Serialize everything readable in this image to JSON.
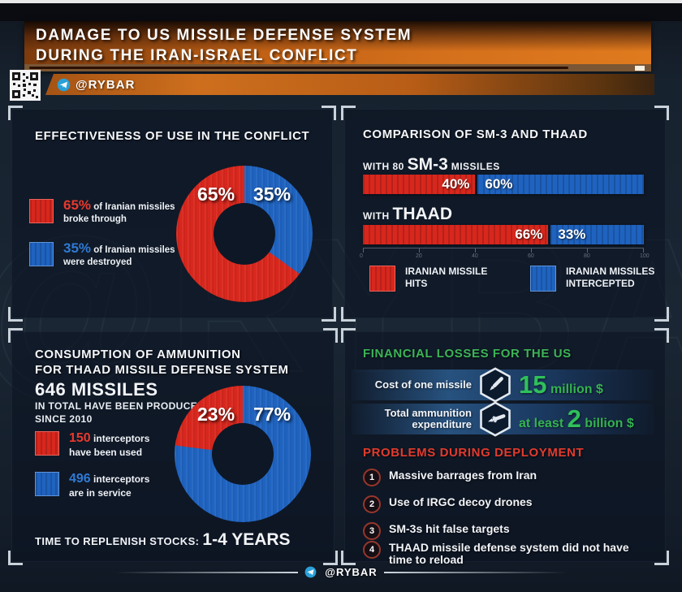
{
  "header": {
    "line1": "DAMAGE TO US MISSILE DEFENSE SYSTEM",
    "line2": "DURING THE IRAN-ISRAEL CONFLICT",
    "channel": "@RYBAR"
  },
  "watermark": "@RYBAR",
  "footer": {
    "channel": "@RYBAR"
  },
  "effectiveness": {
    "title": "EFFECTIVENESS OF USE IN THE CONFLICT",
    "donut_labels": {
      "red": "65%",
      "blue": "35%"
    },
    "legend": [
      {
        "value": "65%",
        "rest": " of Iranian missiles",
        "line2": "broke through"
      },
      {
        "value": "35%",
        "rest": " of Iranian missiles",
        "line2": "were destroyed"
      }
    ]
  },
  "comparison": {
    "title": "COMPARISON OF SM-3 AND THAAD",
    "bar1": {
      "prefix": "WITH 80 ",
      "big": "SM-3",
      "suffix": " MISSILES",
      "red_label": "40%",
      "blue_label": "60%"
    },
    "bar2": {
      "prefix": "WITH ",
      "big": "THAAD",
      "suffix": "",
      "red_label": "66%",
      "blue_label": "33%"
    },
    "axis_ticks": [
      "0",
      "20",
      "40",
      "60",
      "80",
      "100"
    ],
    "legend": [
      {
        "line1": "IRANIAN MISSILE",
        "line2": "HITS"
      },
      {
        "line1": "IRANIAN MISSILES",
        "line2": "INTERCEPTED"
      }
    ]
  },
  "consumption": {
    "title1": "CONSUMPTION OF AMMUNITION",
    "title2": "FOR THAAD MISSILE DEFENSE SYSTEM",
    "big": "646 MISSILES",
    "sub1": "IN TOTAL HAVE BEEN PRODUCED",
    "sub2": "SINCE 2010",
    "donut_labels": {
      "red": "23%",
      "blue": "77%"
    },
    "legend": [
      {
        "value": "150",
        "rest": " interceptors",
        "line2": "have been used"
      },
      {
        "value": "496",
        "rest": " interceptors",
        "line2": "are in service"
      }
    ],
    "replenish_label": "TIME TO REPLENISH STOCKS:",
    "replenish_value": "1-4 YEARS"
  },
  "financial": {
    "title": "FINANCIAL LOSSES FOR THE US",
    "rows": [
      {
        "label_line1": "Cost of one missile",
        "label_line2": "",
        "prefix": "",
        "big": "15",
        "suffix": " million $"
      },
      {
        "label_line1": "Total ammunition",
        "label_line2": "expenditure",
        "prefix": "at least ",
        "big": "2",
        "suffix": " billion $"
      }
    ]
  },
  "problems": {
    "title": "PROBLEMS DURING DEPLOYMENT",
    "items": [
      {
        "num": "1",
        "text": "Massive barrages from Iran"
      },
      {
        "num": "2",
        "text": "Use of IRGC decoy drones"
      },
      {
        "num": "3",
        "text": "SM-3s hit false targets"
      },
      {
        "num": "4",
        "text": "THAAD missile defense system did not have time to reload"
      }
    ]
  },
  "colors": {
    "red": "#d8271d",
    "blue": "#1f63c0",
    "green": "#35b251",
    "orange": "#d4701c",
    "problem_red": "#e23b2e"
  },
  "chart_data": [
    {
      "type": "pie",
      "donut": true,
      "title": "EFFECTIVENESS OF USE IN THE CONFLICT",
      "labels": [
        "65% of Iranian missiles broke through",
        "35% of Iranian missiles were destroyed"
      ],
      "values": [
        65,
        35
      ],
      "colors": [
        "#d8271d",
        "#1f63c0"
      ],
      "segments": [
        {
          "color": "#1f63c0",
          "pct": 35
        },
        {
          "color": "#d8271d",
          "pct": 65
        }
      ]
    },
    {
      "type": "bar",
      "horizontal": true,
      "stacked": true,
      "title": "COMPARISON OF SM-3 AND THAAD",
      "categories": [
        "WITH 80 SM-3 MISSILES",
        "WITH THAAD"
      ],
      "series": [
        {
          "name": "IRANIAN MISSILE HITS",
          "color": "#d8271d",
          "values": [
            40,
            66
          ]
        },
        {
          "name": "IRANIAN MISSILES INTERCEPTED",
          "color": "#1f63c0",
          "values": [
            60,
            33
          ]
        }
      ],
      "xlim": [
        0,
        100
      ],
      "xticks": [
        0,
        20,
        40,
        60,
        80,
        100
      ]
    },
    {
      "type": "pie",
      "donut": true,
      "title": "CONSUMPTION OF AMMUNITION FOR THAAD MISSILE DEFENSE SYSTEM",
      "labels": [
        "150 interceptors have been used (23%)",
        "496 interceptors are in service (77%)"
      ],
      "values": [
        23,
        77
      ],
      "colors": [
        "#d8271d",
        "#1f63c0"
      ],
      "segments": [
        {
          "color": "#1f63c0",
          "pct": 77
        },
        {
          "color": "#d8271d",
          "pct": 23
        }
      ]
    }
  ]
}
